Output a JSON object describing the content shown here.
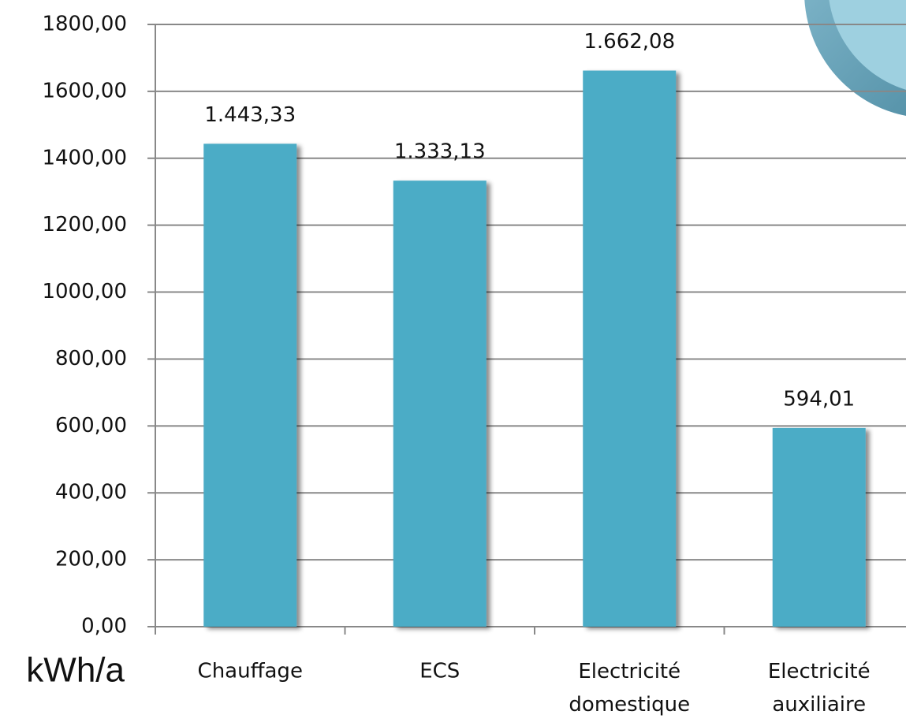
{
  "chart_data": {
    "type": "bar",
    "unit_label": "kWh/a",
    "categories": [
      "Chauffage",
      "ECS",
      "Electricité domestique",
      "Electricité auxiliaire"
    ],
    "values": [
      1443.33,
      1333.13,
      1662.08,
      594.01
    ],
    "value_labels": [
      "1.443,33",
      "1.333,13",
      "1.662,08",
      "594,01"
    ],
    "color": "#4bacc6",
    "ylim": [
      0,
      1800
    ],
    "yticks": [
      {
        "value": 0,
        "label": "0,00"
      },
      {
        "value": 200,
        "label": "200,00"
      },
      {
        "value": 400,
        "label": "400,00"
      },
      {
        "value": 600,
        "label": "600,00"
      },
      {
        "value": 800,
        "label": "800,00"
      },
      {
        "value": 1000,
        "label": "1000,00"
      },
      {
        "value": 1200,
        "label": "1200,00"
      },
      {
        "value": 1400,
        "label": "1400,00"
      },
      {
        "value": 1600,
        "label": "1600,00"
      },
      {
        "value": 1800,
        "label": "1800,00"
      }
    ],
    "grid": true
  }
}
